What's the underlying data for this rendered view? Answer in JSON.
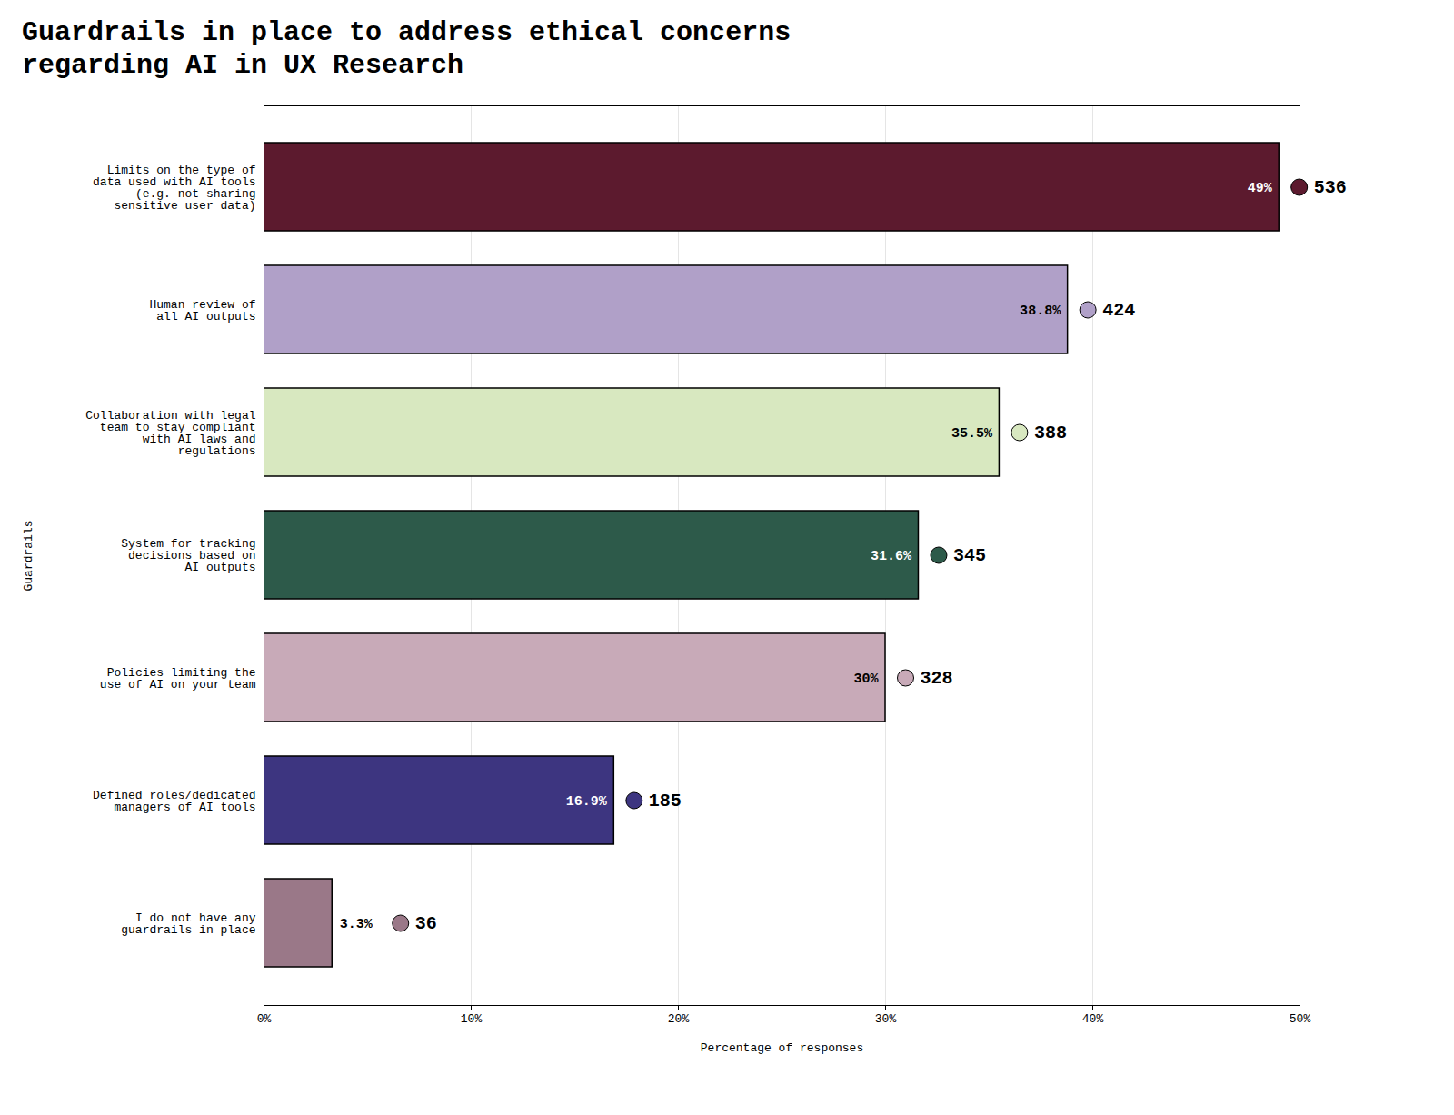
{
  "chart_data": {
    "type": "bar",
    "orientation": "horizontal",
    "title": "Guardrails in place to address ethical concerns\nregarding AI in UX Research",
    "categories": [
      "Limits on the type of\ndata used with AI tools\n(e.g. not sharing\nsensitive user data)",
      "Human review of\nall AI outputs",
      "Collaboration with legal\nteam to stay compliant\nwith AI laws and\nregulations",
      "System for tracking\ndecisions based on\nAI outputs",
      "Policies limiting the\nuse of AI on your team",
      "Defined roles/dedicated\nmanagers of AI tools",
      "I do not have any\nguardrails in place"
    ],
    "values": [
      49.0,
      38.8,
      35.5,
      31.6,
      30.0,
      16.9,
      3.3
    ],
    "value_labels": [
      "49%",
      "38.8%",
      "35.5%",
      "31.6%",
      "30%",
      "16.9%",
      "3.3%"
    ],
    "counts": [
      536,
      424,
      388,
      345,
      328,
      185,
      36
    ],
    "colors": [
      "#5c1a2e",
      "#b0a0c8",
      "#d8e8c0",
      "#2d5a4a",
      "#c8aab8",
      "#3d3580",
      "#9a7888"
    ],
    "xlabel": "Percentage of responses",
    "ylabel": "Guardrails",
    "xlim": [
      0,
      50
    ],
    "xticks": [
      {
        "value": 0,
        "label": "0%"
      },
      {
        "value": 10,
        "label": "10%"
      },
      {
        "value": 20,
        "label": "20%"
      },
      {
        "value": 30,
        "label": "30%"
      },
      {
        "value": 40,
        "label": "40%"
      },
      {
        "value": 50,
        "label": "50%"
      }
    ],
    "grid": true,
    "data_labels": true
  }
}
